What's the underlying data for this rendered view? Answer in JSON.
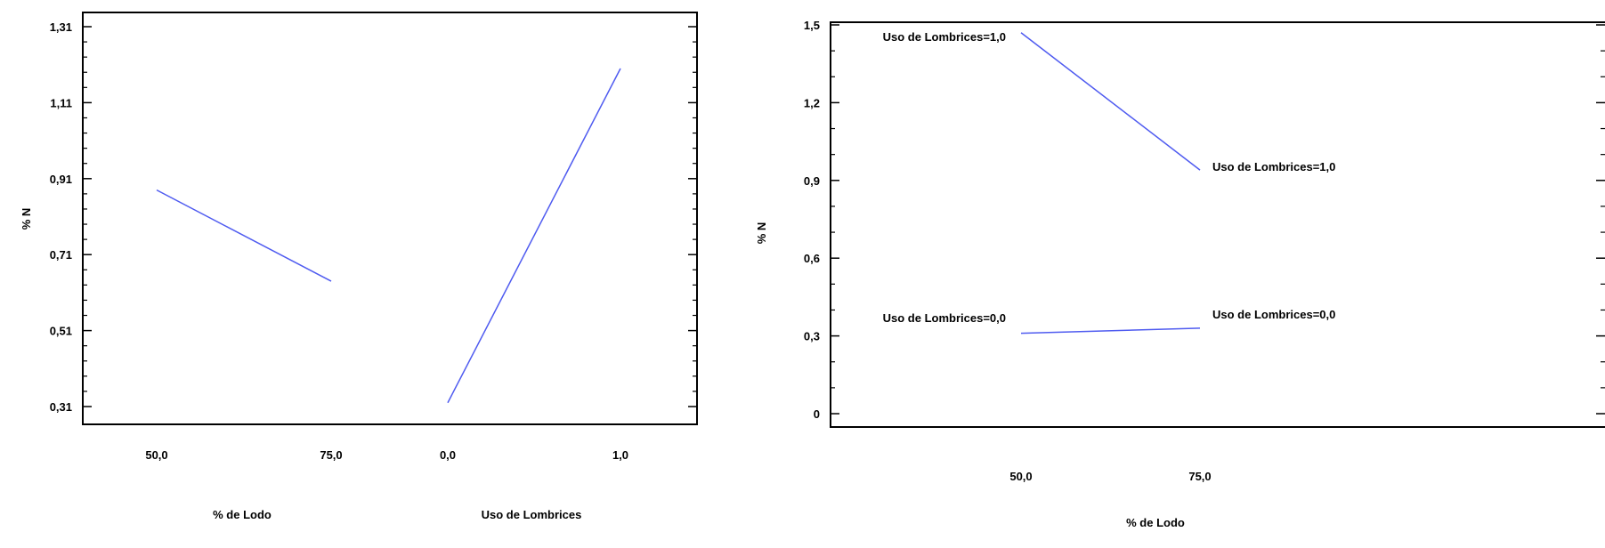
{
  "colors": {
    "line": "#4f5bf0",
    "axis": "#000000"
  },
  "chart_data": [
    {
      "type": "line",
      "title": "",
      "ylabel": "% N",
      "ylim": [
        0.31,
        1.31
      ],
      "yticks": [
        "0,31",
        "0,51",
        "0,71",
        "0,91",
        "1,11",
        "1,31"
      ],
      "panels": [
        {
          "xlabel": "% de Lodo",
          "xticks": [
            "50,0",
            "75,0"
          ],
          "x": [
            50,
            75
          ],
          "y": [
            0.88,
            0.64
          ]
        },
        {
          "xlabel": "Uso de Lombrices",
          "xticks": [
            "0,0",
            "1,0"
          ],
          "x": [
            0,
            1
          ],
          "y": [
            0.32,
            1.2
          ]
        }
      ]
    },
    {
      "type": "line",
      "title": "",
      "ylabel": "% N",
      "xlabel": "% de Lodo",
      "ylim": [
        0,
        1.5
      ],
      "yticks": [
        "0",
        "0,3",
        "0,6",
        "0,9",
        "1,2",
        "1,5"
      ],
      "xticks": [
        "50,0",
        "75,0"
      ],
      "series": [
        {
          "name": "Uso de Lombrices=1,0",
          "x": [
            50,
            75
          ],
          "y": [
            1.47,
            0.94
          ],
          "label_start": "Uso de Lombrices=1,0",
          "label_end": "Uso de Lombrices=1,0"
        },
        {
          "name": "Uso de Lombrices=0,0",
          "x": [
            50,
            75
          ],
          "y": [
            0.31,
            0.33
          ],
          "label_start": "Uso de Lombrices=0,0",
          "label_end": "Uso de Lombrices=0,0"
        }
      ]
    }
  ]
}
